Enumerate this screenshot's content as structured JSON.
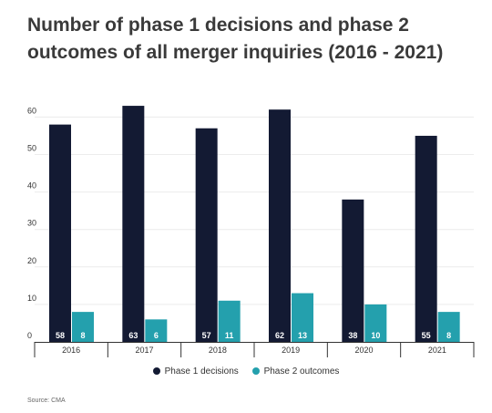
{
  "chart_data": {
    "type": "bar",
    "title_line1": "Number of phase 1 decisions and phase 2",
    "title_line2": "outcomes of all merger inquiries (2016 - 2021)",
    "categories": [
      "2016",
      "2017",
      "2018",
      "2019",
      "2020",
      "2021"
    ],
    "series": [
      {
        "name": "Phase 1 decisions",
        "values": [
          58,
          63,
          57,
          62,
          38,
          55
        ],
        "color": "#131a33"
      },
      {
        "name": "Phase 2 outcomes",
        "values": [
          8,
          6,
          11,
          13,
          10,
          8
        ],
        "color": "#24a0ad"
      }
    ],
    "yticks": [
      0,
      10,
      20,
      30,
      40,
      50,
      60
    ],
    "ylim": [
      0,
      65
    ],
    "grid": true,
    "legend_position": "bottom",
    "source": "Source: CMA"
  }
}
